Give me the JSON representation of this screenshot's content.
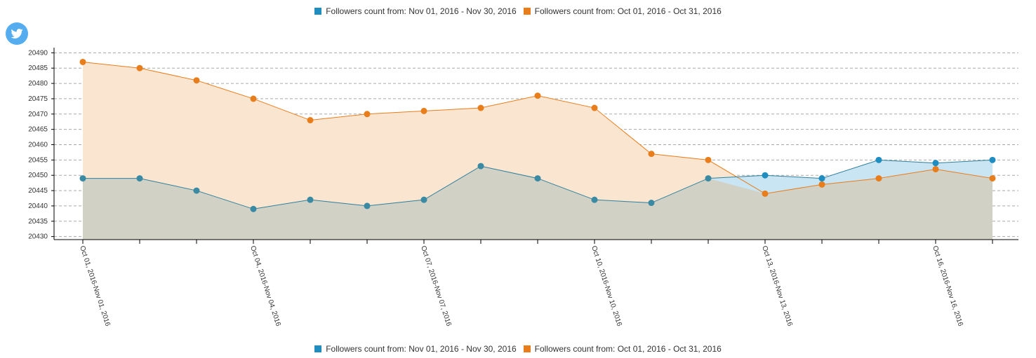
{
  "legend": {
    "series_nov_label": "Followers count from: Nov 01, 2016 - Nov 30, 2016",
    "series_oct_label": "Followers count from: Oct 01, 2016 - Oct 31, 2016"
  },
  "brand": {
    "icon": "twitter-bird-icon",
    "color": "#55acee"
  },
  "colors": {
    "nov": "#1f8dc0",
    "nov_fill": "#c9e4f2",
    "oct": "#e87d1c",
    "oct_fill": "#fae5d1",
    "overlap_fill": "#d1d1c6",
    "grid": "#a9a9a9",
    "axis": "#000000"
  },
  "chart_data": {
    "type": "area",
    "x": [
      "Oct 01, 2016-Nov 01, 2016",
      "",
      "",
      "Oct 04, 2016-Nov 04, 2016",
      "",
      "",
      "Oct 07, 2016-Nov 07, 2016",
      "",
      "",
      "Oct 10, 2016-Nov 10, 2016",
      "",
      "",
      "Oct 13, 2016-Nov 13, 2016",
      "",
      "",
      "Oct 16, 2016-Nov 16, 2016",
      ""
    ],
    "series": [
      {
        "name": "Followers count from: Nov 01, 2016 - Nov 30, 2016",
        "values": [
          20449,
          20449,
          20445,
          20439,
          20442,
          20440,
          20442,
          20453,
          20449,
          20442,
          20441,
          20449,
          20450,
          20449,
          20455,
          20454,
          20455
        ]
      },
      {
        "name": "Followers count from: Oct 01, 2016 - Oct 31, 2016",
        "values": [
          20487,
          20485,
          20481,
          20475,
          20468,
          20470,
          20471,
          20472,
          20476,
          20472,
          20457,
          20455,
          20444,
          20447,
          20449,
          20452,
          20449
        ]
      }
    ],
    "yticks": [
      20430,
      20435,
      20440,
      20445,
      20450,
      20455,
      20460,
      20465,
      20470,
      20475,
      20480,
      20485,
      20490
    ],
    "ylim": [
      20429,
      20491
    ],
    "title": "",
    "xlabel": "",
    "ylabel": "",
    "grid": "horizontal-dashed",
    "legend_position": "top-and-bottom-center"
  }
}
